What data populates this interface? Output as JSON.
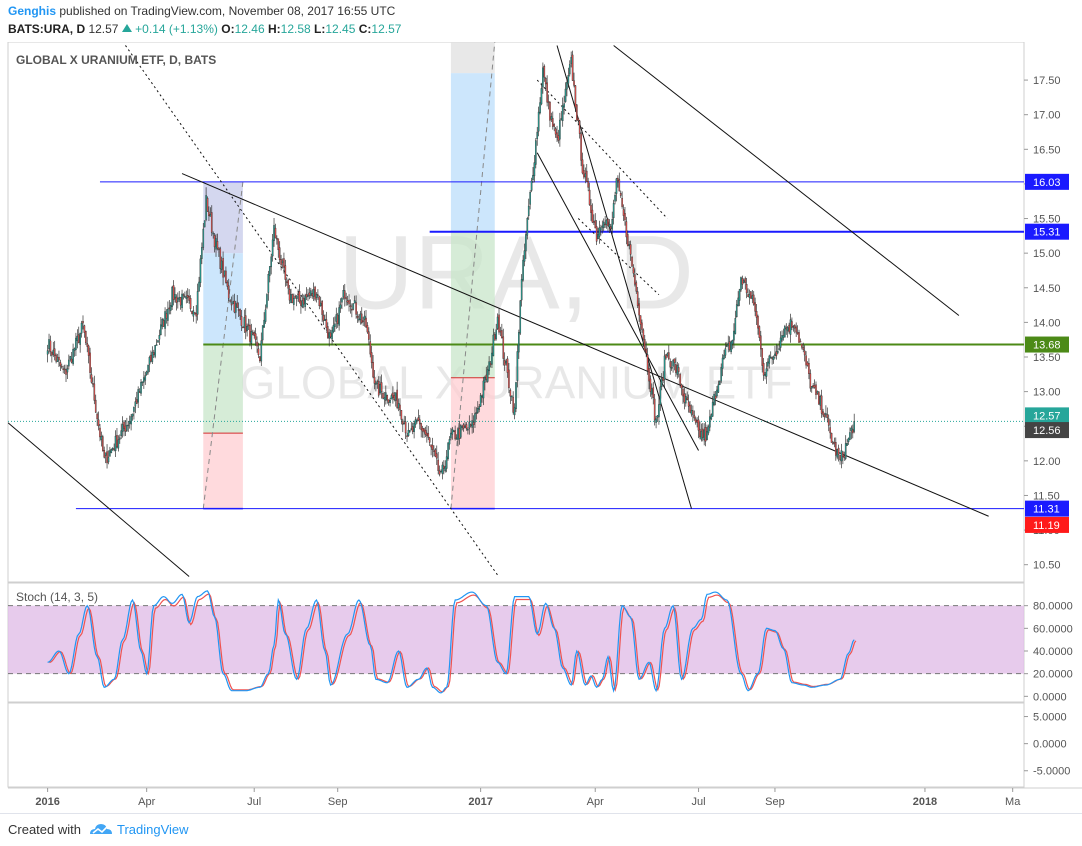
{
  "header": {
    "author": "Genghis",
    "published": "published on TradingView.com, November 08, 2017 16:55 UTC",
    "symbol": "BATS:URA, D",
    "last": "12.57",
    "change": "+0.14 (+1.13%)",
    "o_label": "O:",
    "o_value": "12.46",
    "h_label": "H:",
    "h_value": "12.58",
    "l_label": "L:",
    "l_value": "12.45",
    "c_label": "C:",
    "c_value": "12.57"
  },
  "watermark": {
    "big": "URA, D",
    "small": "GLOBAL X URANIUM ETF"
  },
  "footer": {
    "created_with": "Created with",
    "brand": "TradingView"
  },
  "colors": {
    "up": "#26a69a",
    "down": "#ef5350",
    "accent": "#2196f3",
    "stoch_band": "#e1bee7"
  },
  "chart_data": [
    {
      "type": "candlestick",
      "title": "GLOBAL X URANIUM ETF, D, BATS",
      "y_ticks": [
        "10.50",
        "11.00",
        "11.50",
        "12.00",
        "12.50",
        "13.00",
        "13.50",
        "14.00",
        "14.50",
        "15.00",
        "15.50",
        "16.00",
        "16.50",
        "17.00",
        "17.50"
      ],
      "y_tick_values": [
        10.5,
        11.0,
        11.5,
        12.0,
        12.5,
        13.0,
        13.5,
        14.0,
        14.5,
        15.0,
        15.5,
        16.0,
        16.5,
        17.0,
        17.5
      ],
      "ylim": [
        10.25,
        18.05
      ],
      "x_ticks": [
        "2016",
        "Apr",
        "Jul",
        "Sep",
        "2017",
        "Apr",
        "Jul",
        "Sep",
        "2018",
        "Ma"
      ],
      "x_tick_index": [
        0,
        70,
        146,
        205,
        306,
        387,
        460,
        514,
        620,
        682
      ],
      "index_range": [
        -28,
        690
      ],
      "price_labels": [
        {
          "text": "16.03",
          "value": 16.03,
          "bg": "#1a1aff"
        },
        {
          "text": "15.31",
          "value": 15.31,
          "bg": "#1a1aff"
        },
        {
          "text": "13.68",
          "value": 13.68,
          "bg": "#4c8a17"
        },
        {
          "text": "12.57",
          "value": 12.57,
          "bg": "#26a69a"
        },
        {
          "text": "12.56",
          "value": 12.56,
          "bg": "#444444"
        },
        {
          "text": "11.31",
          "value": 11.31,
          "bg": "#1a1aff"
        },
        {
          "text": "11.19",
          "value": 11.19,
          "bg": "#ff1a1a"
        }
      ],
      "horizontal_lines": [
        {
          "value": 16.03,
          "x_from": 37,
          "color": "#1a1aff"
        },
        {
          "value": 15.31,
          "x_from": 270,
          "color": "#1a1aff"
        },
        {
          "value": 13.68,
          "x_from": 110,
          "color": "#4c8a17"
        },
        {
          "value": 11.31,
          "x_from": 20,
          "color": "#1a1aff"
        }
      ],
      "trend_lines": [
        {
          "x1": -28,
          "y1": 12.55,
          "x2": 100,
          "y2": 10.33,
          "style": "solid"
        },
        {
          "x1": 95,
          "y1": 16.15,
          "x2": 665,
          "y2": 11.2,
          "style": "solid"
        },
        {
          "x1": 400,
          "y1": 18.0,
          "x2": 644,
          "y2": 14.1,
          "style": "solid"
        },
        {
          "x1": 360,
          "y1": 18.0,
          "x2": 455,
          "y2": 11.31,
          "style": "solid"
        },
        {
          "x1": 346,
          "y1": 16.45,
          "x2": 460,
          "y2": 12.15,
          "style": "solid"
        },
        {
          "x1": 55,
          "y1": 18.0,
          "x2": 318,
          "y2": 10.35,
          "style": "dotted"
        },
        {
          "x1": 346,
          "y1": 17.5,
          "x2": 438,
          "y2": 15.5,
          "style": "dotted"
        },
        {
          "x1": 375,
          "y1": 15.5,
          "x2": 432,
          "y2": 14.4,
          "style": "dotted"
        }
      ],
      "gann_boxes": [
        {
          "i1": 110,
          "i2": 138,
          "segments": [
            [
              16.03,
              15.0,
              "#c5cae9"
            ],
            [
              15.0,
              13.68,
              "#bbdefb"
            ],
            [
              13.68,
              12.4,
              "#c8e6c9"
            ],
            [
              12.4,
              11.31,
              "#ffcdd2"
            ]
          ],
          "diagonal": [
            110,
            11.31,
            138,
            16.03
          ]
        },
        {
          "i1": 285,
          "i2": 316,
          "segments": [
            [
              18.05,
              17.6,
              "#e0e0e0"
            ],
            [
              17.6,
              15.31,
              "#bbdefb"
            ],
            [
              15.31,
              13.2,
              "#c8e6c9"
            ],
            [
              13.2,
              11.31,
              "#ffcdd2"
            ]
          ],
          "diagonal": [
            285,
            11.31,
            316,
            18.05
          ]
        }
      ],
      "ohlc_anchors": [
        [
          0,
          13.7
        ],
        [
          12,
          13.25
        ],
        [
          25,
          13.95
        ],
        [
          40,
          12.0
        ],
        [
          58,
          12.6
        ],
        [
          72,
          13.4
        ],
        [
          88,
          14.4
        ],
        [
          105,
          14.2
        ],
        [
          112,
          15.75
        ],
        [
          118,
          15.2
        ],
        [
          128,
          14.4
        ],
        [
          145,
          13.75
        ],
        [
          150,
          13.5
        ],
        [
          160,
          15.35
        ],
        [
          170,
          14.4
        ],
        [
          178,
          14.3
        ],
        [
          190,
          14.45
        ],
        [
          200,
          13.72
        ],
        [
          210,
          14.45
        ],
        [
          225,
          13.95
        ],
        [
          232,
          13.05
        ],
        [
          248,
          12.85
        ],
        [
          255,
          12.35
        ],
        [
          262,
          12.55
        ],
        [
          268,
          12.35
        ],
        [
          278,
          11.75
        ],
        [
          285,
          12.35
        ],
        [
          300,
          12.5
        ],
        [
          312,
          13.35
        ],
        [
          318,
          14.1
        ],
        [
          322,
          13.55
        ],
        [
          330,
          12.7
        ],
        [
          334,
          14.35
        ],
        [
          338,
          15.25
        ],
        [
          345,
          16.6
        ],
        [
          350,
          17.65
        ],
        [
          354,
          17.1
        ],
        [
          360,
          16.6
        ],
        [
          370,
          17.75
        ],
        [
          378,
          16.25
        ],
        [
          388,
          15.25
        ],
        [
          393,
          15.55
        ],
        [
          398,
          15.3
        ],
        [
          402,
          16.05
        ],
        [
          410,
          15.2
        ],
        [
          418,
          14.2
        ],
        [
          425,
          13.25
        ],
        [
          430,
          12.55
        ],
        [
          437,
          13.55
        ],
        [
          445,
          13.3
        ],
        [
          450,
          12.9
        ],
        [
          460,
          12.4
        ],
        [
          466,
          12.35
        ],
        [
          472,
          13.0
        ],
        [
          478,
          13.5
        ],
        [
          484,
          13.75
        ],
        [
          490,
          14.65
        ],
        [
          500,
          14.2
        ],
        [
          506,
          13.3
        ],
        [
          515,
          13.6
        ],
        [
          520,
          13.9
        ],
        [
          528,
          14.0
        ],
        [
          534,
          13.55
        ],
        [
          540,
          13.05
        ],
        [
          548,
          12.75
        ],
        [
          555,
          12.25
        ],
        [
          560,
          12.0
        ],
        [
          566,
          12.3
        ],
        [
          570,
          12.57
        ]
      ]
    },
    {
      "type": "line",
      "title": "Stoch (14, 3, 5)",
      "y_ticks": [
        "0.0000",
        "20.0000",
        "40.0000",
        "60.0000",
        "80.0000"
      ],
      "y_tick_values": [
        0,
        20,
        40,
        60,
        80
      ],
      "ylim": [
        -5,
        100
      ],
      "band": [
        20,
        80
      ],
      "series": [
        {
          "color": "#2196f3"
        },
        {
          "color": "#ef5350"
        }
      ],
      "k_anchors": [
        [
          0,
          30
        ],
        [
          8,
          40
        ],
        [
          15,
          20
        ],
        [
          22,
          55
        ],
        [
          28,
          80
        ],
        [
          35,
          35
        ],
        [
          40,
          8
        ],
        [
          47,
          15
        ],
        [
          53,
          50
        ],
        [
          60,
          85
        ],
        [
          66,
          40
        ],
        [
          70,
          20
        ],
        [
          75,
          80
        ],
        [
          82,
          88
        ],
        [
          88,
          82
        ],
        [
          95,
          90
        ],
        [
          100,
          65
        ],
        [
          106,
          88
        ],
        [
          113,
          93
        ],
        [
          118,
          70
        ],
        [
          124,
          20
        ],
        [
          130,
          5
        ],
        [
          140,
          5
        ],
        [
          150,
          8
        ],
        [
          156,
          20
        ],
        [
          160,
          45
        ],
        [
          163,
          85
        ],
        [
          168,
          55
        ],
        [
          176,
          15
        ],
        [
          183,
          60
        ],
        [
          190,
          85
        ],
        [
          196,
          40
        ],
        [
          200,
          10
        ],
        [
          212,
          55
        ],
        [
          220,
          85
        ],
        [
          228,
          45
        ],
        [
          232,
          15
        ],
        [
          240,
          12
        ],
        [
          248,
          40
        ],
        [
          254,
          8
        ],
        [
          262,
          15
        ],
        [
          268,
          25
        ],
        [
          272,
          8
        ],
        [
          278,
          3
        ],
        [
          282,
          8
        ],
        [
          288,
          85
        ],
        [
          300,
          92
        ],
        [
          310,
          80
        ],
        [
          318,
          30
        ],
        [
          324,
          20
        ],
        [
          330,
          88
        ],
        [
          340,
          88
        ],
        [
          346,
          55
        ],
        [
          352,
          82
        ],
        [
          358,
          60
        ],
        [
          364,
          25
        ],
        [
          370,
          10
        ],
        [
          374,
          40
        ],
        [
          380,
          10
        ],
        [
          384,
          18
        ],
        [
          388,
          8
        ],
        [
          392,
          15
        ],
        [
          396,
          35
        ],
        [
          400,
          5
        ],
        [
          406,
          80
        ],
        [
          412,
          70
        ],
        [
          418,
          15
        ],
        [
          425,
          30
        ],
        [
          430,
          5
        ],
        [
          436,
          60
        ],
        [
          442,
          80
        ],
        [
          448,
          15
        ],
        [
          456,
          60
        ],
        [
          462,
          68
        ],
        [
          466,
          90
        ],
        [
          472,
          92
        ],
        [
          480,
          85
        ],
        [
          490,
          20
        ],
        [
          495,
          5
        ],
        [
          502,
          20
        ],
        [
          508,
          60
        ],
        [
          514,
          58
        ],
        [
          520,
          42
        ],
        [
          526,
          12
        ],
        [
          534,
          10
        ],
        [
          540,
          8
        ],
        [
          550,
          10
        ],
        [
          560,
          15
        ],
        [
          566,
          38
        ],
        [
          570,
          50
        ]
      ]
    },
    {
      "type": "line",
      "title": "",
      "y_ticks": [
        "-5.0000",
        "0.0000",
        "5.0000"
      ],
      "y_tick_values": [
        -5,
        0,
        5
      ],
      "ylim": [
        -8,
        7.5
      ],
      "series": []
    }
  ]
}
